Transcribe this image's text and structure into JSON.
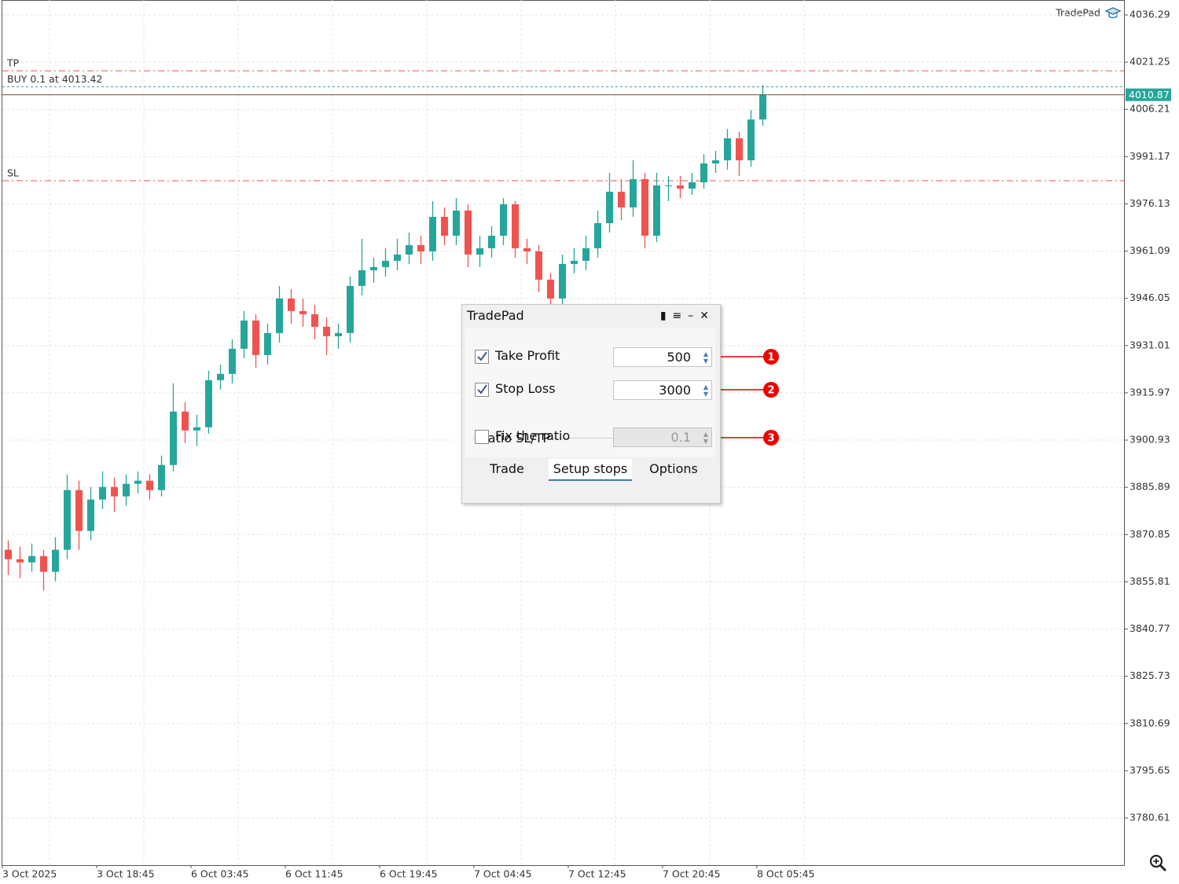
{
  "chart_data": {
    "type": "candlestick",
    "ylim": [
      3765.6,
      4041.04
    ],
    "yticks": [
      4036.29,
      4021.25,
      4006.21,
      3991.17,
      3976.13,
      3961.09,
      3946.05,
      3931.01,
      3915.97,
      3900.93,
      3885.89,
      3870.85,
      3855.81,
      3840.77,
      3825.73,
      3810.69,
      3795.65,
      3780.61
    ],
    "xticks": [
      {
        "value": 0,
        "label": "3 Oct 2025"
      },
      {
        "value": 8,
        "label": "3 Oct 18:45"
      },
      {
        "value": 16,
        "label": "6 Oct 03:45"
      },
      {
        "value": 24,
        "label": "6 Oct 11:45"
      },
      {
        "value": 32,
        "label": "6 Oct 19:45"
      },
      {
        "value": 40,
        "label": "7 Oct 04:45"
      },
      {
        "value": 48,
        "label": "7 Oct 12:45"
      },
      {
        "value": 56,
        "label": "7 Oct 20:45"
      },
      {
        "value": 64,
        "label": "8 Oct 05:45"
      }
    ],
    "open": [
      3866,
      3863,
      3862,
      3864,
      3859,
      3866,
      3885,
      3872,
      3882,
      3886,
      3883,
      3887,
      3888,
      3885,
      3893,
      3910,
      3904,
      3905,
      3920,
      3922,
      3930,
      3939,
      3928,
      3935,
      3946,
      3942,
      3941,
      3937,
      3934,
      3935,
      3950,
      3955,
      3956,
      3958,
      3960,
      3963,
      3961,
      3972,
      3966,
      3974,
      3960,
      3962,
      3966,
      3976,
      3962,
      3961,
      3952,
      3946,
      3957,
      3958,
      3962,
      3970,
      3980,
      3975,
      3984,
      3966,
      3982,
      3982,
      3981,
      3983,
      3989,
      3990,
      3997,
      3990,
      4003
    ],
    "high": [
      3869,
      3867,
      3868,
      3866,
      3870,
      3890,
      3888,
      3886,
      3891,
      3889,
      3890,
      3891,
      3890,
      3896,
      3919,
      3913,
      3909,
      3923,
      3925,
      3933,
      3942,
      3941,
      3938,
      3950,
      3949,
      3946,
      3944,
      3940,
      3938,
      3953,
      3965,
      3959,
      3962,
      3965,
      3967,
      3966,
      3977,
      3975,
      3978,
      3976,
      3966,
      3969,
      3978,
      3977,
      3965,
      3963,
      3954,
      3960,
      3962,
      3966,
      3974,
      3986,
      3984,
      3990,
      3986,
      3986,
      3985,
      3985,
      3986,
      3992,
      3993,
      4000,
      3999,
      4006,
      4014
    ],
    "low": [
      3858,
      3857,
      3859,
      3853,
      3856,
      3863,
      3866,
      3869,
      3879,
      3878,
      3880,
      3884,
      3882,
      3883,
      3891,
      3900,
      3899,
      3903,
      3917,
      3919,
      3927,
      3924,
      3925,
      3932,
      3938,
      3937,
      3933,
      3928,
      3930,
      3932,
      3947,
      3951,
      3953,
      3955,
      3957,
      3957,
      3958,
      3963,
      3963,
      3956,
      3956,
      3959,
      3963,
      3959,
      3957,
      3948,
      3943,
      3944,
      3954,
      3955,
      3959,
      3967,
      3971,
      3972,
      3962,
      3964,
      3977,
      3978,
      3979,
      3981,
      3986,
      3987,
      3985,
      3988,
      4001
    ],
    "close": [
      3863,
      3862,
      3864,
      3859,
      3866,
      3885,
      3872,
      3882,
      3886,
      3883,
      3887,
      3888,
      3885,
      3893,
      3910,
      3904,
      3905,
      3920,
      3922,
      3930,
      3939,
      3928,
      3935,
      3946,
      3942,
      3941,
      3937,
      3934,
      3935,
      3950,
      3955,
      3956,
      3958,
      3960,
      3963,
      3961,
      3972,
      3966,
      3974,
      3960,
      3962,
      3966,
      3976,
      3962,
      3961,
      3952,
      3946,
      3957,
      3958,
      3962,
      3970,
      3980,
      3975,
      3984,
      3966,
      3982,
      3982,
      3981,
      3983,
      3989,
      3990,
      3997,
      3990,
      4003,
      4010.87
    ],
    "up_color": "#26a69a",
    "down_color": "#ef5350",
    "grid": true,
    "levels": [
      {
        "name": "TP",
        "value": 4018.5,
        "color": "#ef5350"
      },
      {
        "name": "BUY 0.1 at 4013.42",
        "value": 4013.42,
        "color": "#26a69a"
      },
      {
        "name": "SL",
        "value": 3983.5,
        "color": "#ef5350"
      }
    ],
    "watermark": "TradePad"
  },
  "dialog": {
    "title": "TradePad",
    "rows": [
      {
        "label": "Take Profit",
        "checked": true,
        "value": "500",
        "enabled": true
      },
      {
        "label": "Stop Loss",
        "checked": true,
        "value": "3000",
        "enabled": true
      }
    ],
    "group": {
      "title": "Ratio SL/TP",
      "label": "Fix the ratio",
      "checked": false,
      "value": "0.1",
      "enabled": false
    },
    "tabs": [
      "Trade",
      "Setup stops",
      "Options"
    ],
    "active_tab": 1
  },
  "callouts": [
    "1",
    "2",
    "3"
  ]
}
